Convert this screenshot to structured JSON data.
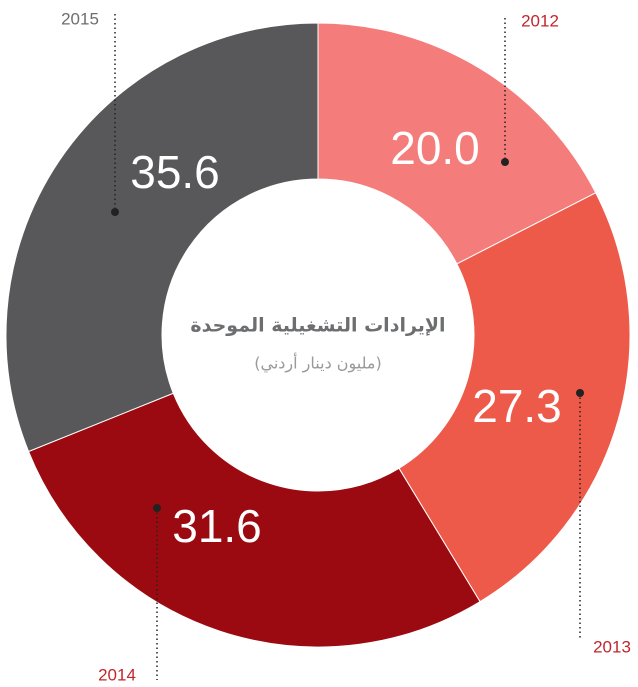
{
  "chart_data": {
    "type": "donut",
    "title": "الإيرادات التشغيلية الموحدة",
    "subtitle": "(مليون دينار أردني)",
    "categories": [
      "2012",
      "2013",
      "2014",
      "2015"
    ],
    "values": [
      20.0,
      27.3,
      31.6,
      35.6
    ],
    "value_labels": [
      "20.0",
      "27.3",
      "31.6",
      "35.6"
    ],
    "colors": [
      "#f47c7a",
      "#ee5a4a",
      "#9b0a10",
      "#58585a"
    ],
    "label_colors": [
      "#c0272d",
      "#c0272d",
      "#c0272d",
      "#6d6e70"
    ]
  }
}
